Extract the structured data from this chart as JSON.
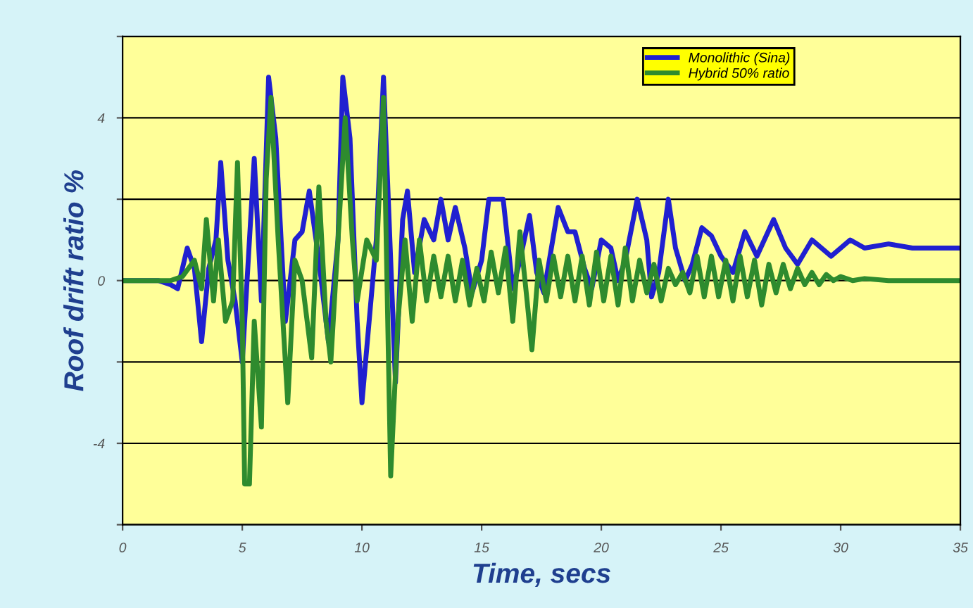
{
  "chart_data": {
    "type": "line",
    "xlabel": "Time, secs",
    "ylabel": "Roof drift ratio %",
    "xlim": [
      0,
      35
    ],
    "xticks": [
      0,
      5,
      10,
      15,
      20,
      25,
      30,
      35
    ],
    "ylim": [
      -6,
      6
    ],
    "yticks": [
      {
        "value": -6,
        "label": null
      },
      -4,
      {
        "value": -2,
        "label": null
      },
      0,
      {
        "value": 2,
        "label": null
      },
      4,
      {
        "value": 6,
        "label": null
      }
    ],
    "grid": "y",
    "legend": "top right",
    "line_style": "solid",
    "marker": "none",
    "series": [
      {
        "name": "Monolithic (Sina)",
        "color": "#2020d0",
        "x": [
          0,
          1.5,
          2,
          2.3,
          2.7,
          3.0,
          3.3,
          3.6,
          3.9,
          4.1,
          4.4,
          4.7,
          5.0,
          5.3,
          5.5,
          5.8,
          6.1,
          6.4,
          6.8,
          7.2,
          7.5,
          7.8,
          8.2,
          8.6,
          9.0,
          9.2,
          9.5,
          9.8,
          10.0,
          10.3,
          10.6,
          10.9,
          11.2,
          11.4,
          11.7,
          11.9,
          12.2,
          12.6,
          13.0,
          13.3,
          13.6,
          13.9,
          14.3,
          14.6,
          15.0,
          15.3,
          15.9,
          16.3,
          16.6,
          17.0,
          17.3,
          17.6,
          18.2,
          18.6,
          18.9,
          19.3,
          19.6,
          20.0,
          20.4,
          20.7,
          21.0,
          21.5,
          21.9,
          22.1,
          22.4,
          22.8,
          23.1,
          23.5,
          23.8,
          24.2,
          24.6,
          25.0,
          25.5,
          26.0,
          26.5,
          27.2,
          27.7,
          28.2,
          28.8,
          29.6,
          30.4,
          31,
          32,
          33,
          35
        ],
        "values": [
          0,
          0,
          -0.1,
          -0.2,
          0.8,
          0.3,
          -1.5,
          0.3,
          1.0,
          2.9,
          0.5,
          -0.5,
          -2.0,
          1.0,
          3.0,
          -0.5,
          5.0,
          3.5,
          -1.0,
          1.0,
          1.2,
          2.2,
          0.5,
          -1.5,
          1.0,
          5.0,
          3.5,
          -1.0,
          -3.0,
          -1.0,
          1.0,
          5.0,
          0.5,
          -2.5,
          1.5,
          2.2,
          0.2,
          1.5,
          1.0,
          2.0,
          1.0,
          1.8,
          0.8,
          -0.3,
          0.5,
          2.0,
          2.0,
          -0.2,
          0.5,
          1.6,
          0.2,
          -0.3,
          1.8,
          1.2,
          1.2,
          0.3,
          -0.2,
          1.0,
          0.8,
          0.0,
          0.5,
          2.0,
          1.0,
          -0.4,
          0.2,
          2.0,
          0.8,
          0.0,
          0.4,
          1.3,
          1.1,
          0.6,
          0.2,
          1.2,
          0.6,
          1.5,
          0.8,
          0.4,
          1.0,
          0.6,
          1.0,
          0.8,
          0.9,
          0.8,
          0.8
        ]
      },
      {
        "name": "Hybrid 50% ratio",
        "color": "#2e8b2e",
        "x": [
          0,
          2,
          2.5,
          3.0,
          3.3,
          3.5,
          3.8,
          4.0,
          4.3,
          4.6,
          4.8,
          5.0,
          5.1,
          5.3,
          5.5,
          5.8,
          6.0,
          6.2,
          6.5,
          6.9,
          7.2,
          7.5,
          7.9,
          8.2,
          8.5,
          8.7,
          9.0,
          9.3,
          9.6,
          9.8,
          10.2,
          10.6,
          10.9,
          11.2,
          11.5,
          11.8,
          12.1,
          12.4,
          12.7,
          13.0,
          13.3,
          13.6,
          13.9,
          14.2,
          14.5,
          14.8,
          15.1,
          15.4,
          15.7,
          16.0,
          16.3,
          16.6,
          16.9,
          17.1,
          17.4,
          17.7,
          18.0,
          18.3,
          18.6,
          18.9,
          19.2,
          19.5,
          19.8,
          20.1,
          20.4,
          20.7,
          21.0,
          21.3,
          21.6,
          21.9,
          22.2,
          22.5,
          22.8,
          23.1,
          23.4,
          23.7,
          24.0,
          24.3,
          24.6,
          24.9,
          25.2,
          25.5,
          25.8,
          26.1,
          26.4,
          26.7,
          27.0,
          27.3,
          27.6,
          27.9,
          28.2,
          28.5,
          28.8,
          29.1,
          29.4,
          29.7,
          30,
          30.5,
          31,
          32,
          35
        ],
        "values": [
          0,
          0,
          0.1,
          0.5,
          -0.2,
          1.5,
          -0.5,
          1.0,
          -1.0,
          -0.5,
          2.9,
          -1.0,
          -5.0,
          -5.0,
          -1.0,
          -3.6,
          2.5,
          4.5,
          1.0,
          -3.0,
          0.5,
          0.0,
          -1.9,
          2.3,
          -1.0,
          -2.0,
          1.0,
          4.0,
          1.0,
          -0.5,
          1.0,
          0.5,
          4.5,
          -4.8,
          -1.0,
          1.0,
          -1.0,
          1.0,
          -0.5,
          0.6,
          -0.4,
          0.6,
          -0.5,
          0.5,
          -0.6,
          0.3,
          -0.5,
          0.7,
          -0.3,
          0.8,
          -1.0,
          1.2,
          -0.5,
          -1.7,
          0.5,
          -0.5,
          0.6,
          -0.4,
          0.6,
          -0.5,
          0.6,
          -0.6,
          0.7,
          -0.5,
          0.6,
          -0.6,
          0.8,
          -0.5,
          0.5,
          -0.3,
          0.4,
          -0.5,
          0.3,
          -0.1,
          0.2,
          -0.3,
          0.6,
          -0.4,
          0.6,
          -0.4,
          0.5,
          -0.5,
          0.6,
          -0.4,
          0.5,
          -0.6,
          0.4,
          -0.3,
          0.4,
          -0.2,
          0.3,
          -0.1,
          0.2,
          -0.1,
          0.15,
          0.0,
          0.1,
          0.0,
          0.05,
          0.0,
          0.0
        ]
      }
    ]
  }
}
